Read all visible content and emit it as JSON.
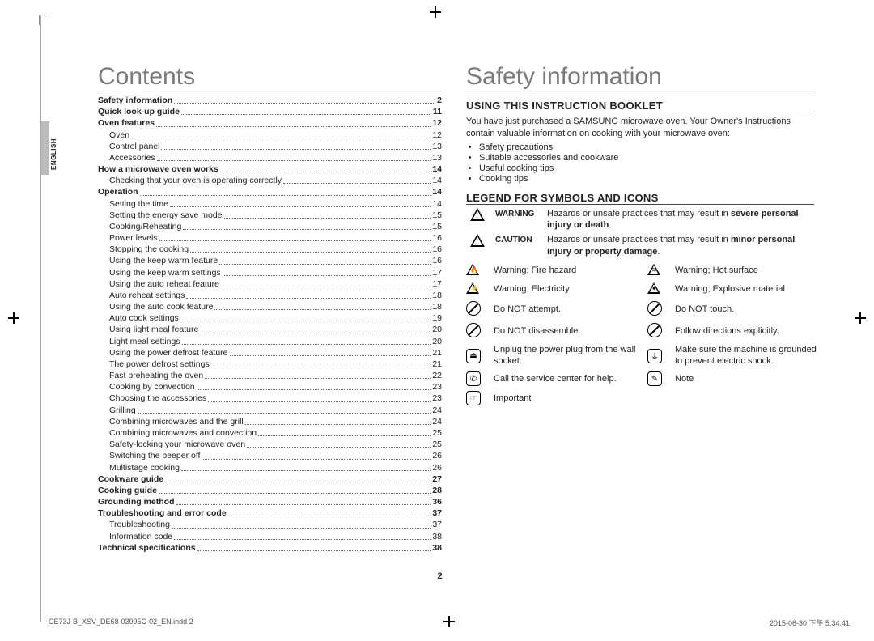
{
  "language_tab": "ENGLISH",
  "page_number": "2",
  "footer_left": "CE73J-B_XSV_DE68-03995C-02_EN.indd   2",
  "footer_right": "2015-06-30   下午 5:34:41",
  "left": {
    "heading": "Contents",
    "toc": [
      {
        "bold": true,
        "label": "Safety information",
        "page": "2"
      },
      {
        "bold": true,
        "label": "Quick look-up guide",
        "page": "11"
      },
      {
        "bold": true,
        "label": "Oven features",
        "page": "12"
      },
      {
        "sub": true,
        "label": "Oven",
        "page": "12"
      },
      {
        "sub": true,
        "label": "Control panel",
        "page": "13"
      },
      {
        "sub": true,
        "label": "Accessories",
        "page": "13"
      },
      {
        "bold": true,
        "label": "How a microwave oven works",
        "page": "14"
      },
      {
        "sub": true,
        "label": "Checking that your oven is operating correctly",
        "page": "14"
      },
      {
        "bold": true,
        "label": "Operation",
        "page": "14"
      },
      {
        "sub": true,
        "label": "Setting the time",
        "page": "14"
      },
      {
        "sub": true,
        "label": "Setting the energy save mode",
        "page": "15"
      },
      {
        "sub": true,
        "label": "Cooking/Reheating",
        "page": "15"
      },
      {
        "sub": true,
        "label": "Power levels",
        "page": "16"
      },
      {
        "sub": true,
        "label": "Stopping the cooking",
        "page": "16"
      },
      {
        "sub": true,
        "label": "Using the keep warm feature",
        "page": "16"
      },
      {
        "sub": true,
        "label": "Using the keep warm settings",
        "page": "17"
      },
      {
        "sub": true,
        "label": "Using the auto reheat feature",
        "page": "17"
      },
      {
        "sub": true,
        "label": "Auto reheat settings",
        "page": "18"
      },
      {
        "sub": true,
        "label": "Using the auto cook feature",
        "page": "18"
      },
      {
        "sub": true,
        "label": "Auto cook settings",
        "page": "19"
      },
      {
        "sub": true,
        "label": "Using light meal feature",
        "page": "20"
      },
      {
        "sub": true,
        "label": "Light meal settings",
        "page": "20"
      },
      {
        "sub": true,
        "label": "Using the power defrost feature",
        "page": "21"
      },
      {
        "sub": true,
        "label": "The power defrost settings",
        "page": "21"
      },
      {
        "sub": true,
        "label": "Fast preheating the oven",
        "page": "22"
      },
      {
        "sub": true,
        "label": "Cooking by convection",
        "page": "23"
      },
      {
        "sub": true,
        "label": "Choosing the accessories",
        "page": "23"
      },
      {
        "sub": true,
        "label": "Grilling",
        "page": "24"
      },
      {
        "sub": true,
        "label": "Combining microwaves and the grill",
        "page": "24"
      },
      {
        "sub": true,
        "label": "Combining microwaves and convection",
        "page": "25"
      },
      {
        "sub": true,
        "label": "Safety-locking your microwave oven",
        "page": "25"
      },
      {
        "sub": true,
        "label": "Switching the beeper off",
        "page": "26"
      },
      {
        "sub": true,
        "label": "Multistage cooking",
        "page": "26"
      },
      {
        "bold": true,
        "label": "Cookware guide",
        "page": "27"
      },
      {
        "bold": true,
        "label": "Cooking guide",
        "page": "28"
      },
      {
        "bold": true,
        "label": "Grounding method",
        "page": "36"
      },
      {
        "bold": true,
        "label": "Troubleshooting and error code",
        "page": "37"
      },
      {
        "sub": true,
        "label": "Troubleshooting",
        "page": "37"
      },
      {
        "sub": true,
        "label": "Information code",
        "page": "38"
      },
      {
        "bold": true,
        "label": "Technical specifications",
        "page": "38"
      }
    ]
  },
  "right": {
    "heading": "Safety information",
    "section1_title": "USING THIS INSTRUCTION BOOKLET",
    "intro": "You have just purchased a SAMSUNG microwave oven. Your Owner's Instructions contain valuable information on cooking with your microwave oven:",
    "bullets": [
      "Safety precautions",
      "Suitable accessories and cookware",
      "Useful cooking tips",
      "Cooking tips"
    ],
    "section2_title": "LEGEND FOR SYMBOLS AND ICONS",
    "warning_label": "WARNING",
    "warning_text_pre": "Hazards or unsafe practices that may result in ",
    "warning_text_bold": "severe personal injury or death",
    "caution_label": "CAUTION",
    "caution_text_pre": "Hazards or unsafe practices that may result in ",
    "caution_text_mid": "minor personal injury or property damage",
    "icons": [
      {
        "glyph": "🔥",
        "text": "Warning; Fire hazard"
      },
      {
        "glyph": "≋",
        "text": "Warning; Hot surface"
      },
      {
        "glyph": "⚡",
        "text": "Warning; Electricity"
      },
      {
        "glyph": "✷",
        "text": "Warning; Explosive material"
      },
      {
        "glyph": "⊘",
        "text": "Do NOT attempt."
      },
      {
        "glyph": "✋",
        "text": "Do NOT touch."
      },
      {
        "glyph": "✖",
        "text": "Do NOT disassemble."
      },
      {
        "glyph": "➜",
        "text": "Follow directions explicitly."
      },
      {
        "glyph": "⏏",
        "text": "Unplug the power plug from the wall socket."
      },
      {
        "glyph": "⏚",
        "text": "Make sure the machine is grounded to prevent electric shock."
      },
      {
        "glyph": "✆",
        "text": "Call the service center for help."
      },
      {
        "glyph": "✎",
        "text": "Note"
      },
      {
        "glyph": "☞",
        "text": "Important"
      }
    ]
  }
}
